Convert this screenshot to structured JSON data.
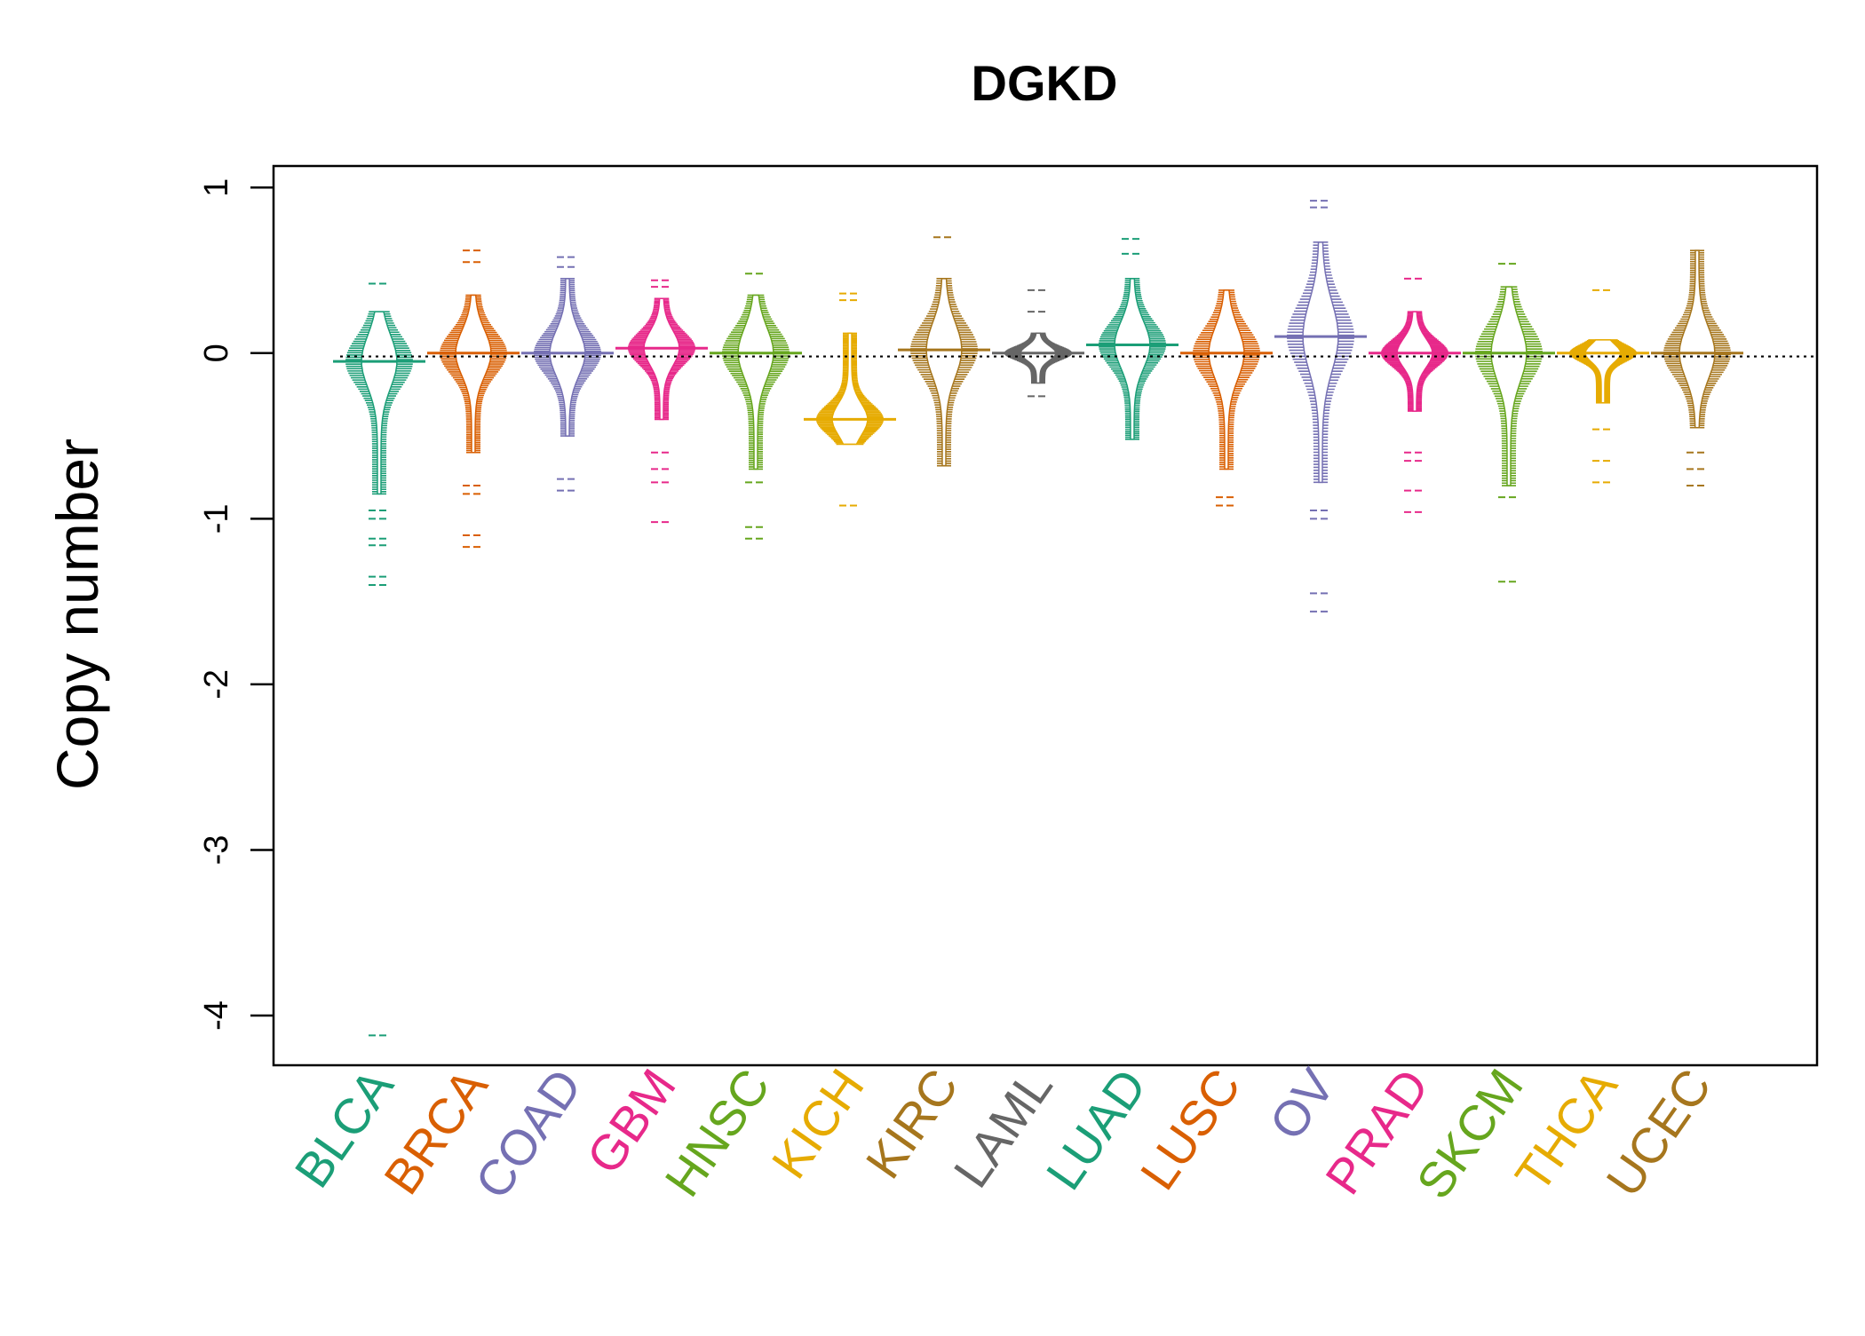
{
  "chart_data": {
    "type": "beanplot",
    "title": "DGKD",
    "xlabel": "",
    "ylabel": "Copy number",
    "ylim": [
      -4.3,
      1.13
    ],
    "yticks": [
      1,
      0,
      -1,
      -2,
      -3,
      -4
    ],
    "ytick_labels": [
      "1",
      "0",
      "-1",
      "-2",
      "-3",
      "-4"
    ],
    "reference_line": -0.02,
    "grid": false,
    "legend": "none",
    "categories": [
      "BLCA",
      "BRCA",
      "COAD",
      "GBM",
      "HNSC",
      "KICH",
      "KIRC",
      "LAML",
      "LUAD",
      "LUSC",
      "OV",
      "PRAD",
      "SKCM",
      "THCA",
      "UCEC"
    ],
    "colors": [
      "#1B9E77",
      "#D95F02",
      "#7570B3",
      "#E7298A",
      "#66A61E",
      "#E6AB02",
      "#A6761D",
      "#666666",
      "#1B9E77",
      "#D95F02",
      "#7570B3",
      "#E7298A",
      "#66A61E",
      "#E6AB02",
      "#A6761D"
    ],
    "series": [
      {
        "category": "BLCA",
        "median": -0.05,
        "dense_range": [
          -0.85,
          0.25
        ],
        "outliers": [
          0.42,
          -0.95,
          -1.0,
          -1.12,
          -1.16,
          -1.35,
          -1.4,
          -4.12
        ]
      },
      {
        "category": "BRCA",
        "median": 0.0,
        "dense_range": [
          -0.6,
          0.35
        ],
        "outliers": [
          0.62,
          0.55,
          -0.8,
          -0.85,
          -1.1,
          -1.17
        ]
      },
      {
        "category": "COAD",
        "median": 0.0,
        "dense_range": [
          -0.5,
          0.45
        ],
        "outliers": [
          0.58,
          0.52,
          -0.76,
          -0.83
        ]
      },
      {
        "category": "GBM",
        "median": 0.03,
        "dense_range": [
          -0.4,
          0.33
        ],
        "outliers": [
          0.44,
          0.4,
          -0.6,
          -0.7,
          -0.78,
          -1.02
        ]
      },
      {
        "category": "HNSC",
        "median": 0.0,
        "dense_range": [
          -0.7,
          0.35
        ],
        "outliers": [
          0.48,
          -0.78,
          -1.05,
          -1.12
        ]
      },
      {
        "category": "KICH",
        "median": -0.4,
        "dense_range": [
          -0.55,
          0.12
        ],
        "outliers": [
          0.36,
          0.32,
          -0.92
        ]
      },
      {
        "category": "KIRC",
        "median": 0.02,
        "dense_range": [
          -0.68,
          0.45
        ],
        "outliers": [
          0.7
        ]
      },
      {
        "category": "LAML",
        "median": 0.0,
        "dense_range": [
          -0.18,
          0.12
        ],
        "outliers": [
          0.38,
          0.25,
          -0.26
        ]
      },
      {
        "category": "LUAD",
        "median": 0.05,
        "dense_range": [
          -0.52,
          0.45
        ],
        "outliers": [
          0.69,
          0.6
        ]
      },
      {
        "category": "LUSC",
        "median": 0.0,
        "dense_range": [
          -0.7,
          0.38
        ],
        "outliers": [
          -0.87,
          -0.92
        ]
      },
      {
        "category": "OV",
        "median": 0.1,
        "dense_range": [
          -0.78,
          0.67
        ],
        "outliers": [
          0.92,
          0.88,
          -0.95,
          -1.0,
          -1.45,
          -1.56
        ]
      },
      {
        "category": "PRAD",
        "median": 0.0,
        "dense_range": [
          -0.35,
          0.25
        ],
        "outliers": [
          0.45,
          -0.6,
          -0.65,
          -0.83,
          -0.96
        ]
      },
      {
        "category": "SKCM",
        "median": 0.0,
        "dense_range": [
          -0.8,
          0.4
        ],
        "outliers": [
          0.54,
          -0.87,
          -1.38
        ]
      },
      {
        "category": "THCA",
        "median": 0.0,
        "dense_range": [
          -0.3,
          0.08
        ],
        "outliers": [
          0.38,
          -0.46,
          -0.65,
          -0.78
        ]
      },
      {
        "category": "UCEC",
        "median": 0.0,
        "dense_range": [
          -0.45,
          0.62
        ],
        "outliers": [
          -0.6,
          -0.7,
          -0.8
        ]
      }
    ]
  }
}
